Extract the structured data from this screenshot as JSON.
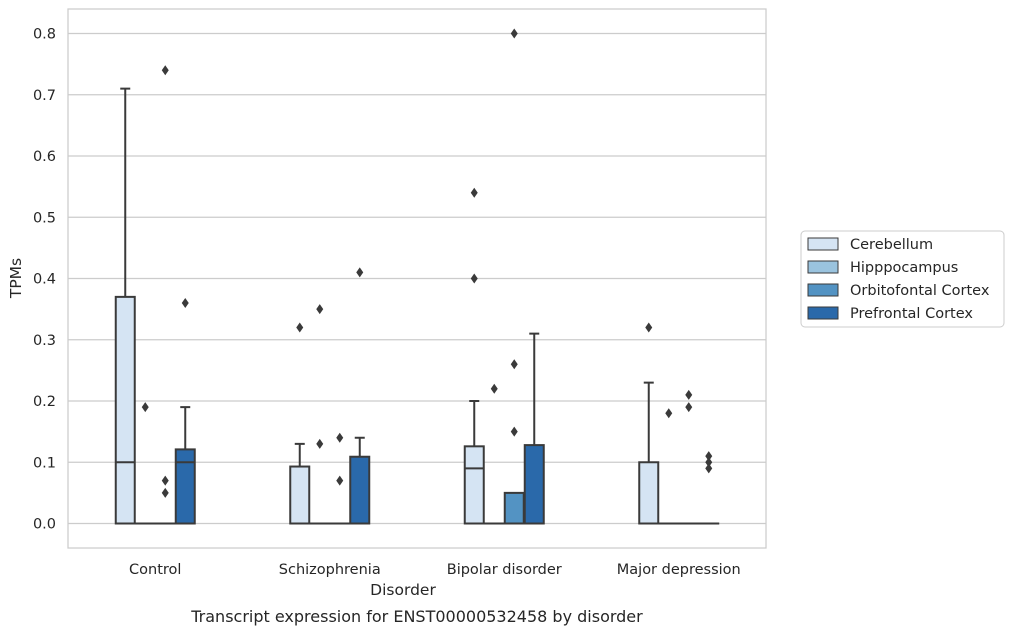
{
  "chart_data": {
    "type": "box",
    "caption": "Transcript expression for ENST00000532458 by disorder",
    "xlabel": "Disorder",
    "ylabel": "TPMs",
    "ylim": [
      -0.04,
      0.84
    ],
    "yticks": [
      "0.0",
      "0.1",
      "0.2",
      "0.3",
      "0.4",
      "0.5",
      "0.6",
      "0.7",
      "0.8"
    ],
    "grid": true,
    "legend_position": "right",
    "categories": [
      "Control",
      "Schizophrenia",
      "Bipolar disorder",
      "Major depression"
    ],
    "series": [
      {
        "name": "Cerebellum",
        "color": "#d5e4f3",
        "boxes": [
          {
            "whislo": 0.0,
            "q1": 0.0,
            "med": 0.1,
            "q3": 0.37,
            "whishi": 0.71,
            "fliers": []
          },
          {
            "whislo": 0.0,
            "q1": 0.0,
            "med": 0.0,
            "q3": 0.093,
            "whishi": 0.13,
            "fliers": [
              0.32
            ]
          },
          {
            "whislo": 0.0,
            "q1": 0.0,
            "med": 0.09,
            "q3": 0.126,
            "whishi": 0.2,
            "fliers": [
              0.4,
              0.54
            ]
          },
          {
            "whislo": 0.0,
            "q1": 0.0,
            "med": 0.0,
            "q3": 0.1,
            "whishi": 0.23,
            "fliers": [
              0.32
            ]
          }
        ]
      },
      {
        "name": "Hipppocampus",
        "color": "#9ac3de",
        "boxes": [
          {
            "whislo": 0.0,
            "q1": 0.0,
            "med": 0.0,
            "q3": 0.0,
            "whishi": 0.0,
            "fliers": [
              0.19
            ]
          },
          {
            "whislo": 0.0,
            "q1": 0.0,
            "med": 0.0,
            "q3": 0.0,
            "whishi": 0.0,
            "fliers": [
              0.13,
              0.35
            ]
          },
          {
            "whislo": 0.0,
            "q1": 0.0,
            "med": 0.0,
            "q3": 0.0,
            "whishi": 0.0,
            "fliers": [
              0.22
            ]
          },
          {
            "whislo": 0.0,
            "q1": 0.0,
            "med": 0.0,
            "q3": 0.0,
            "whishi": 0.0,
            "fliers": [
              0.18
            ]
          }
        ]
      },
      {
        "name": "Orbitofontal Cortex",
        "color": "#5393c3",
        "boxes": [
          {
            "whislo": 0.0,
            "q1": 0.0,
            "med": 0.0,
            "q3": 0.0,
            "whishi": 0.0,
            "fliers": [
              0.05,
              0.07,
              0.74
            ]
          },
          {
            "whislo": 0.0,
            "q1": 0.0,
            "med": 0.0,
            "q3": 0.0,
            "whishi": 0.0,
            "fliers": [
              0.07,
              0.14
            ]
          },
          {
            "whislo": 0.0,
            "q1": 0.0,
            "med": 0.0,
            "q3": 0.05,
            "whishi": 0.05,
            "fliers": [
              0.15,
              0.26,
              0.8
            ]
          },
          {
            "whislo": 0.0,
            "q1": 0.0,
            "med": 0.0,
            "q3": 0.0,
            "whishi": 0.0,
            "fliers": [
              0.19,
              0.21
            ]
          }
        ]
      },
      {
        "name": "Prefrontal Cortex",
        "color": "#2a69aa",
        "boxes": [
          {
            "whislo": 0.0,
            "q1": 0.0,
            "med": 0.1,
            "q3": 0.121,
            "whishi": 0.19,
            "fliers": [
              0.36
            ]
          },
          {
            "whislo": 0.0,
            "q1": 0.0,
            "med": 0.0,
            "q3": 0.109,
            "whishi": 0.14,
            "fliers": [
              0.41
            ]
          },
          {
            "whislo": 0.0,
            "q1": 0.0,
            "med": 0.0,
            "q3": 0.128,
            "whishi": 0.31,
            "fliers": []
          },
          {
            "whislo": 0.0,
            "q1": 0.0,
            "med": 0.0,
            "q3": 0.0,
            "whishi": 0.0,
            "fliers": [
              0.09,
              0.1,
              0.11
            ]
          }
        ]
      }
    ]
  }
}
